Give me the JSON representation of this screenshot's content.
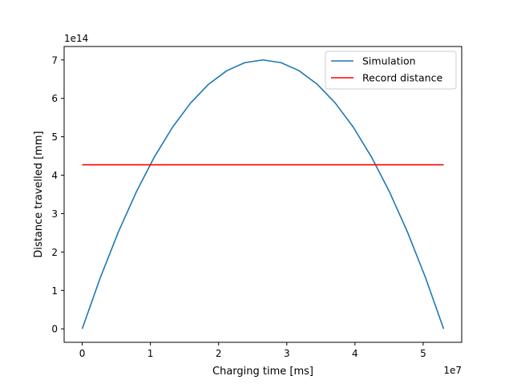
{
  "chart_data": {
    "type": "line",
    "xlabel": "Charging time [ms]",
    "ylabel": "Distance travelled [mm]",
    "x_offset_text": "1e7",
    "y_offset_text": "1e14",
    "xlim": [
      -2.65,
      55.65
    ],
    "ylim": [
      -0.35,
      7.35
    ],
    "x_ticks": [
      0,
      1,
      2,
      3,
      4,
      5
    ],
    "y_ticks": [
      0,
      1,
      2,
      3,
      4,
      5,
      6,
      7
    ],
    "x_tick_labels": [
      "0",
      "1",
      "2",
      "3",
      "4",
      "5"
    ],
    "y_tick_labels": [
      "0",
      "1",
      "2",
      "3",
      "4",
      "5",
      "6",
      "7"
    ],
    "grid": false,
    "legend_position": "top-right",
    "series": [
      {
        "name": "Simulation",
        "color": "#1f77b4",
        "x": [
          0,
          2.65,
          5.3,
          7.95,
          10.6,
          13.25,
          15.9,
          18.55,
          21.2,
          23.85,
          26.5,
          29.15,
          31.8,
          34.45,
          37.1,
          39.75,
          42.4,
          45.05,
          47.7,
          50.35,
          53.0
        ],
        "y": [
          0,
          1.33,
          2.52,
          3.57,
          4.48,
          5.25,
          5.88,
          6.37,
          6.72,
          6.93,
          7.0,
          6.93,
          6.72,
          6.37,
          5.88,
          5.25,
          4.48,
          3.57,
          2.52,
          1.33,
          0
        ]
      },
      {
        "name": "Record distance",
        "color": "#ff0000",
        "x": [
          0,
          53.0
        ],
        "y": [
          4.27,
          4.27
        ]
      }
    ]
  }
}
